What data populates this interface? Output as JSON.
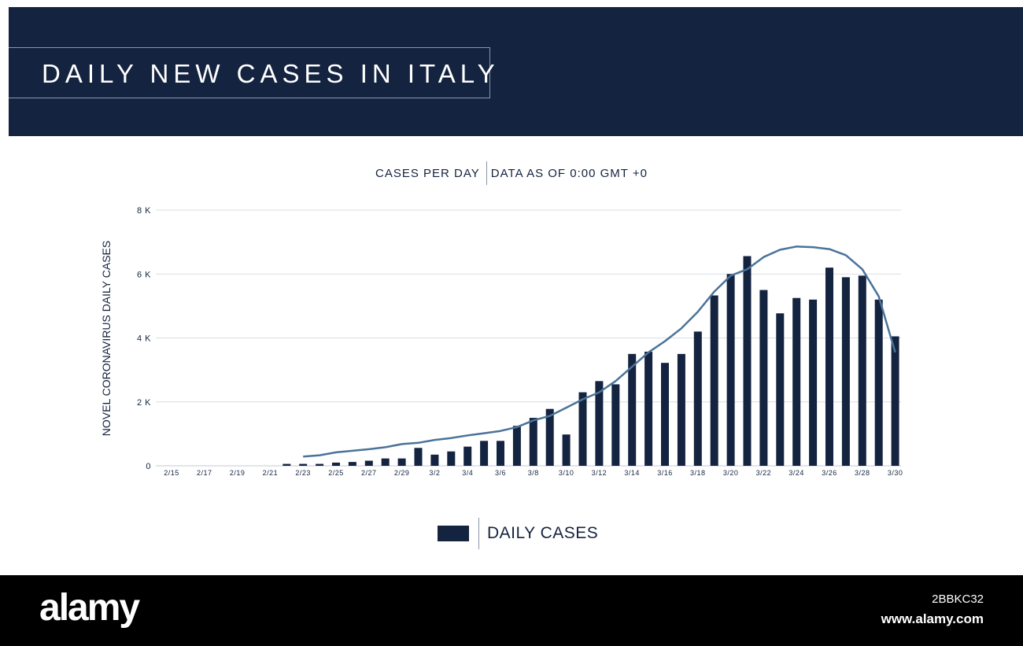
{
  "header": {
    "title": "DAILY NEW CASES IN ITALY"
  },
  "subtitle": {
    "left": "CASES PER DAY",
    "right": "DATA AS OF 0:00 GMT +0"
  },
  "legend": {
    "label": "DAILY CASES"
  },
  "footer": {
    "logo": "alamy",
    "image_id": "2BBKC32",
    "url": "www.alamy.com"
  },
  "colors": {
    "header_bg": "#14233f",
    "bar": "#14233f",
    "trend_line": "#4a7399",
    "grid": "#d9dde3"
  },
  "chart_data": {
    "type": "bar",
    "title": "DAILY NEW CASES IN ITALY",
    "ylabel": "NOVEL CORONAVIRUS DAILY CASES",
    "xlabel": "",
    "ylim": [
      0,
      8000
    ],
    "yticks": [
      {
        "value": 0,
        "label": "0"
      },
      {
        "value": 2000,
        "label": "2 K"
      },
      {
        "value": 4000,
        "label": "4 K"
      },
      {
        "value": 6000,
        "label": "6 K"
      },
      {
        "value": 8000,
        "label": "8 K"
      }
    ],
    "categories": [
      "2/15",
      "2/16",
      "2/17",
      "2/18",
      "2/19",
      "2/20",
      "2/21",
      "2/22",
      "2/23",
      "2/24",
      "2/25",
      "2/26",
      "2/27",
      "2/28",
      "2/29",
      "3/1",
      "3/2",
      "3/3",
      "3/4",
      "3/5",
      "3/6",
      "3/7",
      "3/8",
      "3/9",
      "3/10",
      "3/11",
      "3/12",
      "3/13",
      "3/14",
      "3/15",
      "3/16",
      "3/17",
      "3/18",
      "3/19",
      "3/20",
      "3/21",
      "3/22",
      "3/23",
      "3/24",
      "3/25",
      "3/26",
      "3/27",
      "3/28",
      "3/29",
      "3/30"
    ],
    "xtick_labels": [
      "2/15",
      "2/17",
      "2/19",
      "2/21",
      "2/23",
      "2/25",
      "2/27",
      "2/29",
      "3/2",
      "3/4",
      "3/6",
      "3/8",
      "3/10",
      "3/12",
      "3/14",
      "3/16",
      "3/18",
      "3/20",
      "3/22",
      "3/24",
      "3/26",
      "3/28",
      "3/30"
    ],
    "series": [
      {
        "name": "DAILY CASES",
        "type": "bar",
        "values": [
          0,
          0,
          0,
          0,
          0,
          0,
          0,
          60,
          60,
          60,
          100,
          120,
          160,
          230,
          230,
          560,
          350,
          450,
          600,
          780,
          780,
          1250,
          1500,
          1780,
          980,
          2300,
          2650,
          2550,
          3500,
          3570,
          3220,
          3500,
          4200,
          5330,
          6000,
          6560,
          5500,
          4770,
          5250,
          5200,
          6200,
          5900,
          5950,
          5200,
          4050
        ]
      },
      {
        "type": "line",
        "values": [
          null,
          null,
          null,
          null,
          null,
          null,
          null,
          null,
          290,
          330,
          420,
          470,
          520,
          580,
          680,
          720,
          810,
          870,
          950,
          1020,
          1090,
          1210,
          1420,
          1560,
          1820,
          2080,
          2300,
          2650,
          3100,
          3550,
          3900,
          4300,
          4820,
          5450,
          5950,
          6150,
          6530,
          6760,
          6860,
          6840,
          6780,
          6590,
          6150,
          5300,
          3550
        ]
      }
    ],
    "grid": true,
    "legend_position": "bottom-center"
  }
}
